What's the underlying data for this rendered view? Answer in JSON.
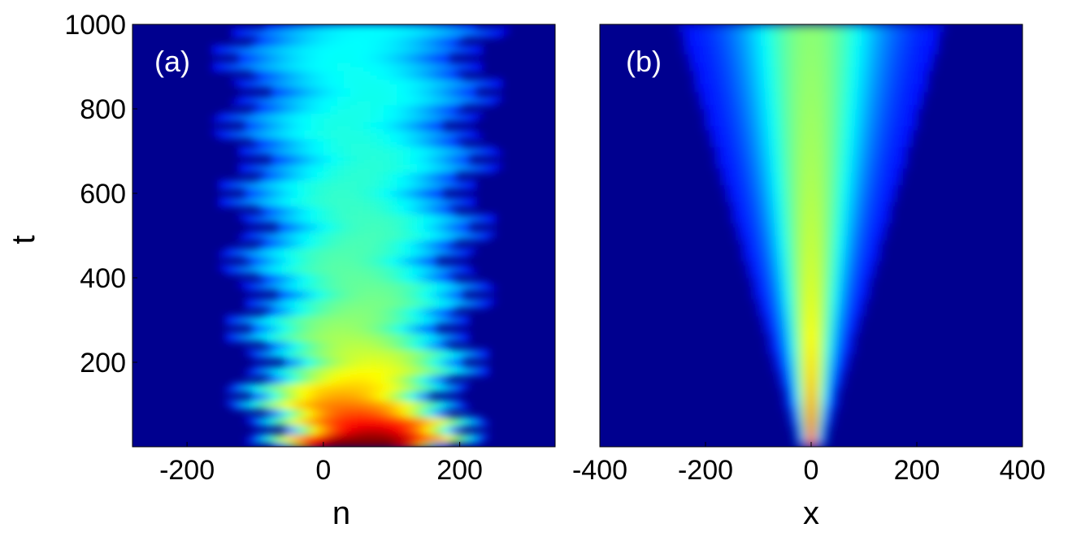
{
  "chart_data": [
    {
      "type": "heatmap",
      "panel_label": "(a)",
      "xlabel": "n",
      "ylabel": "t",
      "xlim": [
        -280,
        340
      ],
      "ylim": [
        0,
        1000
      ],
      "xticks": [
        -200,
        0,
        200
      ],
      "yticks": [
        200,
        400,
        600,
        800,
        1000
      ],
      "pattern": "zigzag breathing beam, peak intensity near t=0 spreading and oscillating between about n=-150 and n=250",
      "colormap": "jet"
    },
    {
      "type": "heatmap",
      "panel_label": "(b)",
      "xlabel": "x",
      "ylabel": "",
      "xlim": [
        -400,
        400
      ],
      "ylim": [
        0,
        1000
      ],
      "xticks": [
        -400,
        -200,
        0,
        200,
        400
      ],
      "yticks": [],
      "pattern": "smoothly diffracting beam centered at x=0, narrow and intense at t=0, broadening with t",
      "colormap": "jet"
    }
  ],
  "colors": {
    "background": "#00008f",
    "low": "#0000c8",
    "mid": "#00c8ff",
    "high": "#ffff00",
    "peak": "#c80000"
  }
}
